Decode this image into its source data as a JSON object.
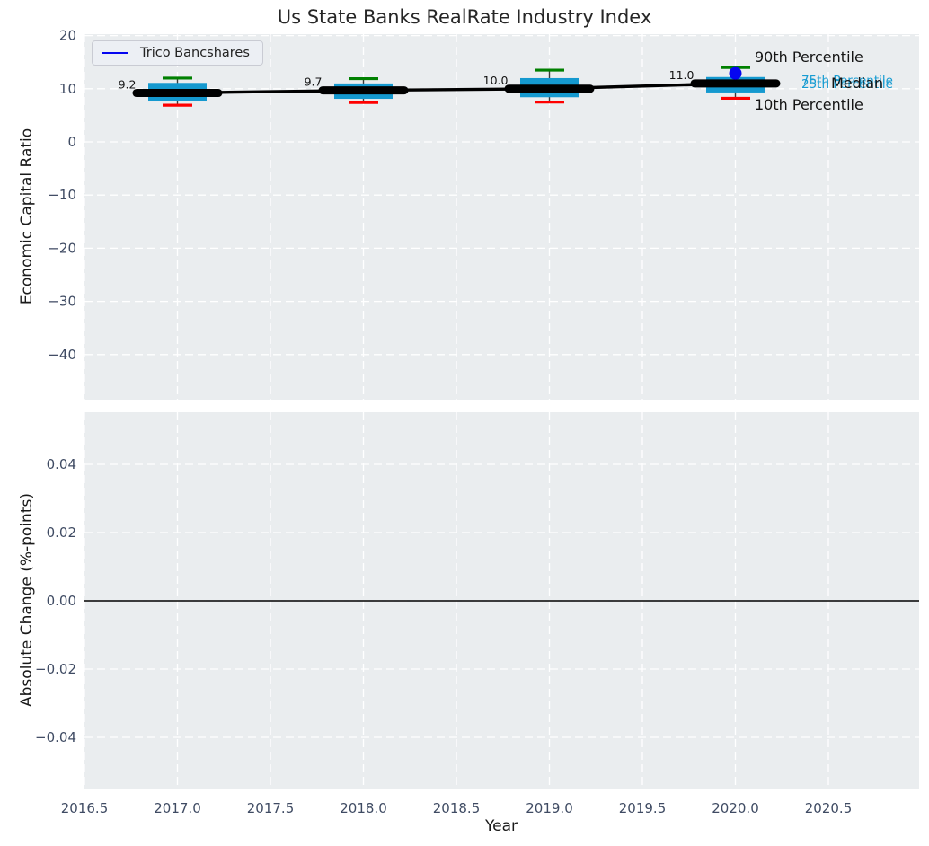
{
  "title": "Us State Banks RealRate Industry Index",
  "legend": {
    "label": "Trico Bancshares",
    "line_color": "#0505f0"
  },
  "annotations": {
    "p90": {
      "text": "90th Percentile",
      "color": "#141414"
    },
    "p75": {
      "text": "75th Percentile",
      "color": "#189cd2"
    },
    "p25": {
      "text": "25th Percentile",
      "color": "#189cd2"
    },
    "median": {
      "text": "Median",
      "color": "#141414"
    },
    "p10": {
      "text": "10th Percentile",
      "color": "#141414"
    }
  },
  "x_axis": {
    "label": "Year",
    "tick_labels": [
      "2016.5",
      "2017.0",
      "2017.5",
      "2018.0",
      "2018.5",
      "2019.0",
      "2019.5",
      "2020.0",
      "2020.5"
    ],
    "tick_values": [
      2016.5,
      2017,
      2017.5,
      2018,
      2018.5,
      2019,
      2019.5,
      2020,
      2020.5
    ]
  },
  "chart_data": [
    {
      "type": "boxplot",
      "panel": "top",
      "title": "Us State Banks RealRate Industry Index",
      "ylabel": "Economic Capital Ratio",
      "ytick_labels": [
        "20",
        "10",
        "0",
        "−10",
        "−20",
        "−30",
        "−40"
      ],
      "ytick_values": [
        20,
        10,
        0,
        -10,
        -20,
        -30,
        -40
      ],
      "ylim": [
        -48.5,
        20.3
      ],
      "xlim": [
        2016.5,
        2021.0
      ],
      "grid": true,
      "legend_position": "upper left",
      "box_color": "#1599cf",
      "p90_cap_color": "#008000",
      "p10_cap_color": "#ff0000",
      "median_line_color": "#000000",
      "whisker_color": "#3a3a3a",
      "boxes": [
        {
          "x": 2017,
          "label": "9.2",
          "median": 9.2,
          "q1": 7.6,
          "q3": 11.1,
          "p10": 6.9,
          "p90": 12.0
        },
        {
          "x": 2018,
          "label": "9.7",
          "median": 9.7,
          "q1": 8.1,
          "q3": 11.0,
          "p10": 7.4,
          "p90": 11.9
        },
        {
          "x": 2019,
          "label": "10.0",
          "median": 10.0,
          "q1": 8.4,
          "q3": 12.0,
          "p10": 7.5,
          "p90": 13.5
        },
        {
          "x": 2020,
          "label": "11.0",
          "median": 11.0,
          "q1": 9.3,
          "q3": 12.2,
          "p10": 8.2,
          "p90": 14.0
        }
      ],
      "company_series": {
        "name": "Trico Bancshares",
        "color": "#0505f0",
        "points": [
          {
            "x": 2020,
            "y": 12.9
          }
        ]
      }
    },
    {
      "type": "line",
      "panel": "bottom",
      "ylabel": "Absolute Change (%-points)",
      "ytick_labels": [
        "0.04",
        "0.02",
        "0.00",
        "−0.02",
        "−0.04"
      ],
      "ytick_values": [
        0.04,
        0.02,
        0,
        -0.02,
        -0.04
      ],
      "ylim": [
        -0.055,
        0.055
      ],
      "zero_line": 0,
      "series": []
    }
  ],
  "colors": {
    "axes_background": "#eaedef",
    "grid": "#ffffff",
    "tick_label": "#3f4b63",
    "text": "#1a1a1a"
  }
}
